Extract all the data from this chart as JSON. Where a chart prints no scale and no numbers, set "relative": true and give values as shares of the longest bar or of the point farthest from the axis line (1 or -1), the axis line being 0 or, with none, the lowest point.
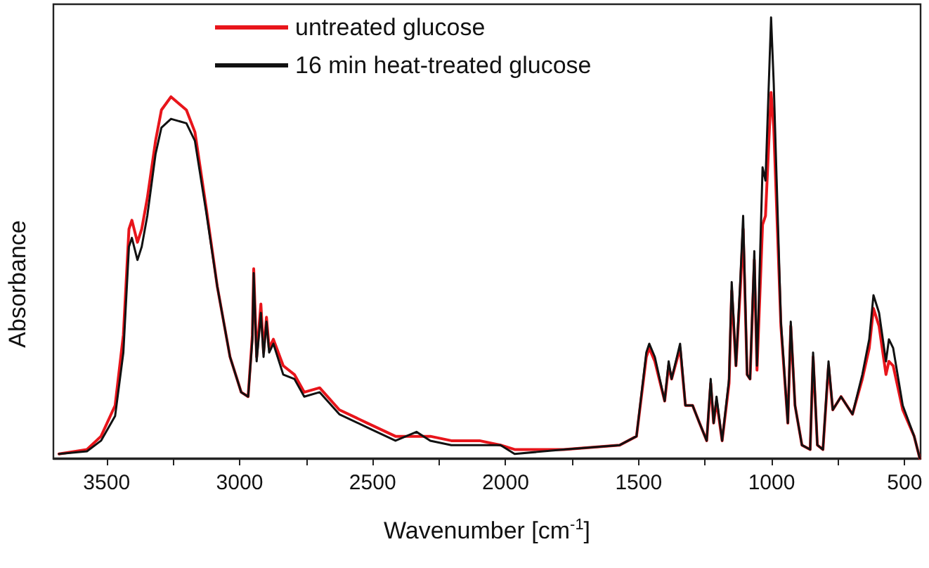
{
  "chart_data": {
    "type": "line",
    "relative": true,
    "xlabel": "Wavenumber [cm$^{-1}$]",
    "ylabel": "Absorbance",
    "xlim": [
      3700,
      440
    ],
    "xticks": [
      3500,
      {
        "value": 3250,
        "label": null
      },
      3000,
      {
        "value": 2750,
        "label": null
      },
      2500,
      {
        "value": 2250,
        "label": null
      },
      2000,
      {
        "value": 1750,
        "label": null
      },
      1500,
      {
        "value": 1250,
        "label": null
      },
      1000,
      {
        "value": 750,
        "label": null
      },
      500
    ],
    "legend": "top",
    "marker": "none",
    "line_style": "solid",
    "grid": false,
    "x": [
      3679,
      3574,
      3521,
      3468,
      3437,
      3416,
      3405,
      3384,
      3368,
      3347,
      3316,
      3294,
      3258,
      3200,
      3168,
      3126,
      3084,
      3036,
      2994,
      2968,
      2952,
      2947,
      2936,
      2920,
      2910,
      2899,
      2889,
      2873,
      2836,
      2794,
      2757,
      2699,
      2625,
      2520,
      2414,
      2335,
      2283,
      2204,
      2098,
      2019,
      1966,
      1782,
      1571,
      1508,
      1471,
      1460,
      1439,
      1402,
      1387,
      1376,
      1344,
      1324,
      1297,
      1271,
      1244,
      1229,
      1218,
      1207,
      1186,
      1160,
      1150,
      1134,
      1118,
      1107,
      1092,
      1081,
      1065,
      1055,
      1034,
      1023,
      1002,
      992,
      965,
      939,
      928,
      912,
      886,
      855,
      844,
      828,
      807,
      786,
      770,
      739,
      696,
      659,
      633,
      617,
      596,
      570,
      559,
      543,
      507,
      464,
      443
    ],
    "series": [
      {
        "name": "untreated glucose",
        "color": "#e8151b",
        "values": [
          0.01,
          0.02,
          0.05,
          0.12,
          0.28,
          0.52,
          0.54,
          0.49,
          0.52,
          0.59,
          0.72,
          0.79,
          0.82,
          0.79,
          0.74,
          0.57,
          0.39,
          0.23,
          0.15,
          0.14,
          0.28,
          0.43,
          0.23,
          0.35,
          0.24,
          0.32,
          0.25,
          0.27,
          0.21,
          0.19,
          0.15,
          0.16,
          0.11,
          0.08,
          0.05,
          0.05,
          0.05,
          0.04,
          0.04,
          0.03,
          0.02,
          0.02,
          0.03,
          0.05,
          0.23,
          0.25,
          0.22,
          0.13,
          0.21,
          0.18,
          0.25,
          0.12,
          0.12,
          0.08,
          0.04,
          0.17,
          0.08,
          0.13,
          0.04,
          0.17,
          0.38,
          0.21,
          0.38,
          0.52,
          0.19,
          0.18,
          0.45,
          0.2,
          0.53,
          0.55,
          0.83,
          0.75,
          0.3,
          0.08,
          0.3,
          0.12,
          0.03,
          0.02,
          0.23,
          0.03,
          0.02,
          0.21,
          0.11,
          0.14,
          0.1,
          0.18,
          0.25,
          0.34,
          0.3,
          0.19,
          0.22,
          0.21,
          0.11,
          0.05,
          0.0
        ]
      },
      {
        "name": "16 min heat-treated glucose",
        "color": "#111111",
        "values": [
          0.01,
          0.016,
          0.04,
          0.096,
          0.24,
          0.48,
          0.5,
          0.45,
          0.48,
          0.55,
          0.69,
          0.75,
          0.77,
          0.76,
          0.72,
          0.56,
          0.39,
          0.23,
          0.15,
          0.14,
          0.27,
          0.42,
          0.22,
          0.33,
          0.23,
          0.31,
          0.24,
          0.26,
          0.19,
          0.18,
          0.14,
          0.15,
          0.1,
          0.07,
          0.04,
          0.06,
          0.04,
          0.03,
          0.03,
          0.03,
          0.01,
          0.02,
          0.03,
          0.05,
          0.24,
          0.26,
          0.23,
          0.13,
          0.22,
          0.18,
          0.26,
          0.12,
          0.12,
          0.08,
          0.04,
          0.18,
          0.08,
          0.14,
          0.04,
          0.18,
          0.4,
          0.21,
          0.4,
          0.55,
          0.19,
          0.18,
          0.47,
          0.21,
          0.66,
          0.63,
          1.0,
          0.85,
          0.31,
          0.08,
          0.31,
          0.12,
          0.03,
          0.02,
          0.24,
          0.03,
          0.02,
          0.22,
          0.11,
          0.14,
          0.1,
          0.19,
          0.27,
          0.37,
          0.33,
          0.22,
          0.27,
          0.25,
          0.12,
          0.05,
          0.0
        ]
      }
    ]
  }
}
